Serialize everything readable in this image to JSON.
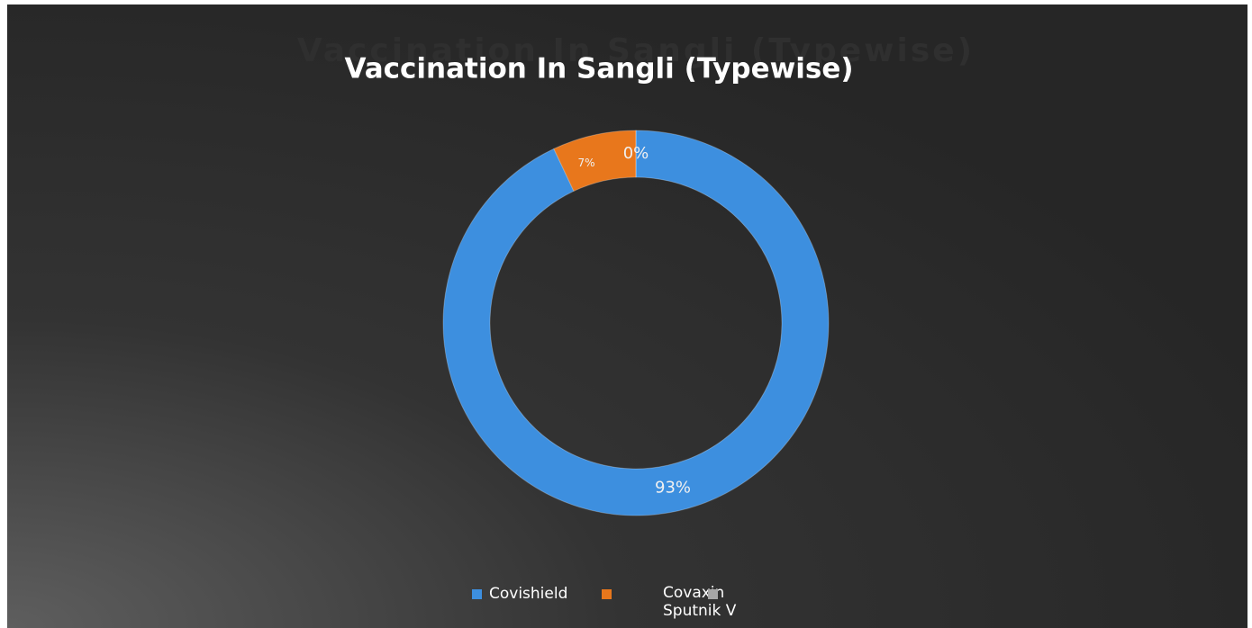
{
  "chart_data": {
    "type": "doughnut",
    "title": "Vaccination In Sangli (Typewise)",
    "categories": [
      "Covishield",
      "Covaxin",
      "Sputnik V"
    ],
    "values": [
      93,
      7,
      0
    ],
    "value_labels": [
      "93%",
      "7%",
      "0%"
    ],
    "colors": [
      "#3d8fdf",
      "#e8771c",
      "#a6a6a6"
    ],
    "legend": "bottom"
  }
}
